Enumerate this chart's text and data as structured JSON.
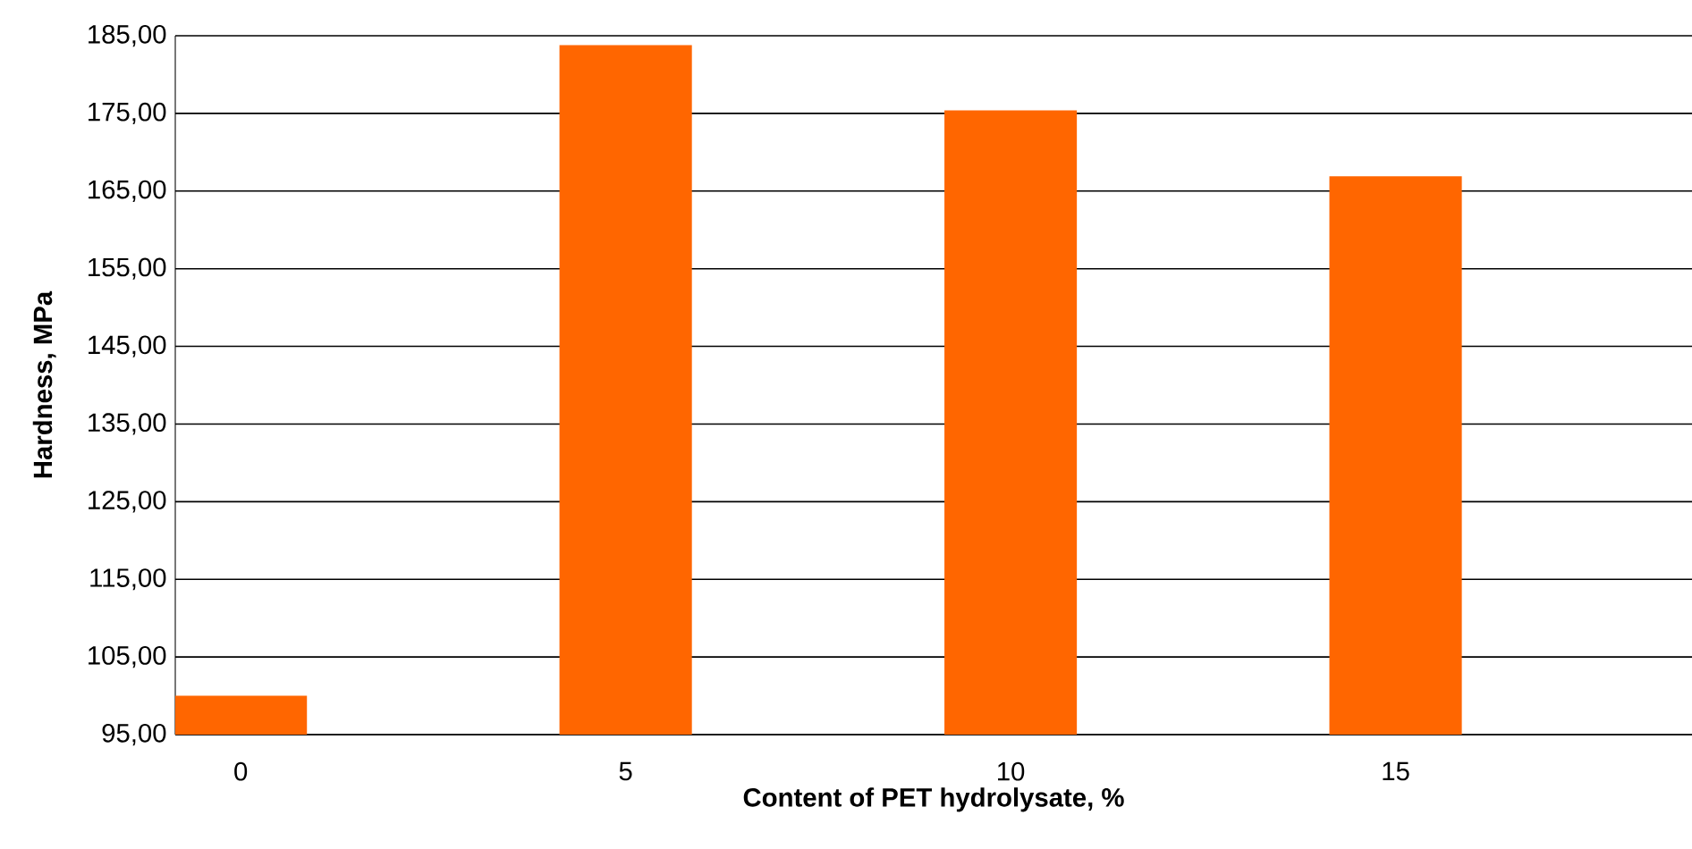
{
  "chart_data": {
    "type": "bar",
    "xlabel": "Content of PET hydrolysate, %",
    "ylabel": "Hardness, MPa",
    "categories": [
      "0",
      "5",
      "10",
      "15"
    ],
    "values": [
      100,
      183.8,
      175.4,
      166.9
    ],
    "color": "#ff6600",
    "ylim": [
      95,
      185
    ],
    "yticks": [
      {
        "value": 95,
        "label": "95,00"
      },
      {
        "value": 105,
        "label": "105,00"
      },
      {
        "value": 115,
        "label": "115,00"
      },
      {
        "value": 125,
        "label": "125,00"
      },
      {
        "value": 135,
        "label": "135,00"
      },
      {
        "value": 145,
        "label": "145,00"
      },
      {
        "value": 155,
        "label": "155,00"
      },
      {
        "value": 165,
        "label": "165,00"
      },
      {
        "value": 175,
        "label": "175,00"
      },
      {
        "value": 185,
        "label": "185,00"
      }
    ],
    "grid": "y"
  }
}
